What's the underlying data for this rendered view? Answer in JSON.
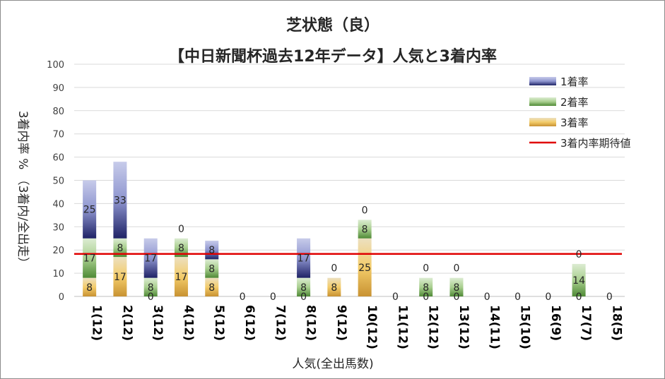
{
  "chart_data": {
    "type": "bar",
    "stacked": true,
    "title": "芝状態（良）",
    "subtitle": "【中日新聞杯過去12年データ】人気と3着内率",
    "xlabel": "人気(全出馬数)",
    "ylabel": "3着内率 % （3着内/全出走）",
    "ylim": [
      0,
      100
    ],
    "yticks": [
      0,
      10,
      20,
      30,
      40,
      50,
      60,
      70,
      80,
      90,
      100
    ],
    "grid": true,
    "legend_position": "top-right",
    "categories": [
      "1(12)",
      "2(12)",
      "3(12)",
      "4(12)",
      "5(12)",
      "6(12)",
      "7(12)",
      "8(12)",
      "9(12)",
      "10(12)",
      "11(12)",
      "12(12)",
      "13(12)",
      "14(11)",
      "15(10)",
      "16(9)",
      "17(7)",
      "18(5)"
    ],
    "series": [
      {
        "name": "3着率",
        "values": [
          8,
          17,
          0,
          17,
          8,
          0,
          0,
          0,
          8,
          25,
          0,
          0,
          0,
          0,
          0,
          0,
          0,
          0
        ],
        "color": "#e0b24f"
      },
      {
        "name": "2着率",
        "values": [
          17,
          8,
          8,
          8,
          8,
          0,
          0,
          8,
          0,
          8,
          0,
          8,
          8,
          0,
          0,
          0,
          14,
          0
        ],
        "color": "#6aa84f"
      },
      {
        "name": "1着率",
        "values": [
          25,
          33,
          17,
          0,
          8,
          0,
          0,
          17,
          0,
          0,
          0,
          0,
          0,
          0,
          0,
          0,
          0,
          0
        ],
        "color": "#3a3f8f"
      }
    ],
    "data_labels": [
      [
        "8",
        "17",
        "25"
      ],
      [
        "17",
        "8",
        "33"
      ],
      [
        "0",
        "8",
        "17"
      ],
      [
        "17",
        "8",
        "0"
      ],
      [
        "8",
        "8",
        "8"
      ],
      [
        "0",
        "",
        ""
      ],
      [
        "0",
        "",
        ""
      ],
      [
        "0",
        "8",
        "17"
      ],
      [
        "8",
        "0",
        ""
      ],
      [
        "25",
        "8",
        "0"
      ],
      [
        "0",
        "",
        ""
      ],
      [
        "0",
        "8",
        "0"
      ],
      [
        "0",
        "8",
        "0"
      ],
      [
        "0",
        "",
        ""
      ],
      [
        "0",
        "",
        ""
      ],
      [
        "0",
        "",
        ""
      ],
      [
        "0",
        "14",
        "0"
      ],
      [
        "0",
        "",
        ""
      ]
    ],
    "expected_line": {
      "name": "3着内率期待値",
      "value": 18.3,
      "color": "#e00000"
    }
  }
}
